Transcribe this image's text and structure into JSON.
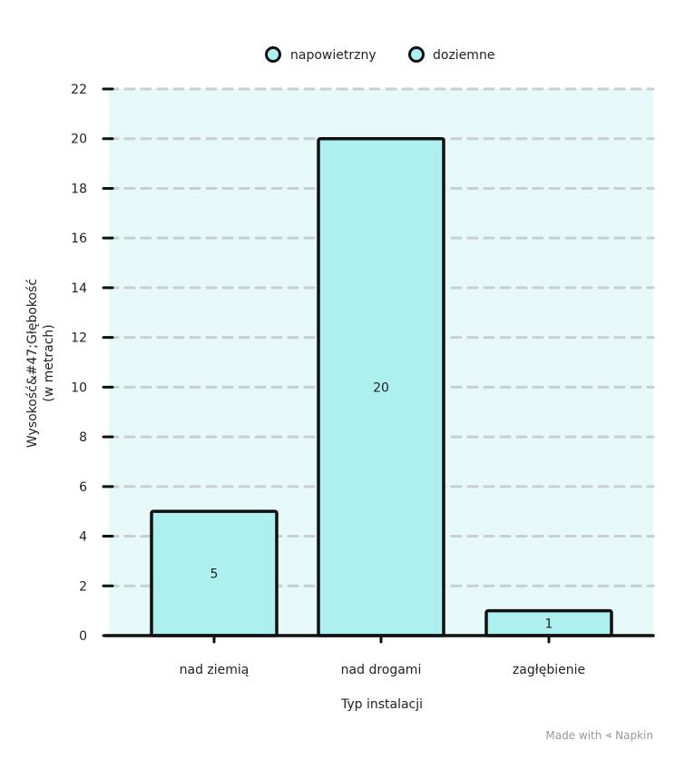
{
  "chart_data": {
    "type": "bar",
    "categories": [
      "nad ziemią",
      "nad drogami",
      "zagłębienie"
    ],
    "values": [
      5,
      20,
      1
    ],
    "series_legend": [
      "napowietrzny",
      "doziemne"
    ],
    "xlabel": "Typ instalacji",
    "ylabel_line1": "Wysokość&#47;Głębokość",
    "ylabel_line2": "(w metrach)",
    "ylim": [
      0,
      22
    ],
    "yticks": [
      0,
      2,
      4,
      6,
      8,
      10,
      12,
      14,
      16,
      18,
      20,
      22
    ],
    "grid": true,
    "legend_position": "top-center",
    "colors": {
      "bar_fill": "#aeeff0",
      "plot_bg": "#e6f8f8",
      "grid": "#c8cfcf",
      "outline": "#111111"
    }
  },
  "footer": {
    "made_with": "Made with",
    "brand": "Napkin"
  }
}
